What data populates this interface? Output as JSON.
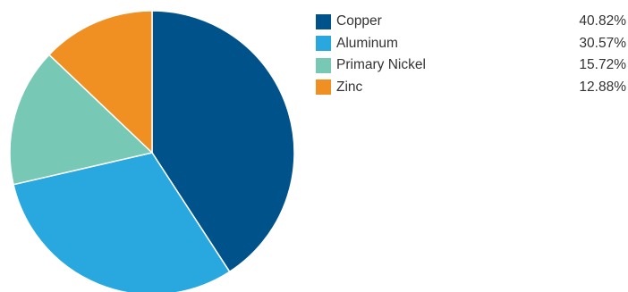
{
  "chart_data": {
    "type": "pie",
    "categories": [
      "Copper",
      "Aluminum",
      "Primary Nickel",
      "Zinc"
    ],
    "values": [
      40.82,
      30.57,
      15.72,
      12.88
    ],
    "value_labels": [
      "40.82%",
      "30.57%",
      "15.72%",
      "12.88%"
    ],
    "colors": [
      "#00528a",
      "#29a8e0",
      "#77c8b5",
      "#f08f22"
    ],
    "start_angle_deg": 0,
    "direction": "clockwise",
    "legend_position": "right"
  }
}
